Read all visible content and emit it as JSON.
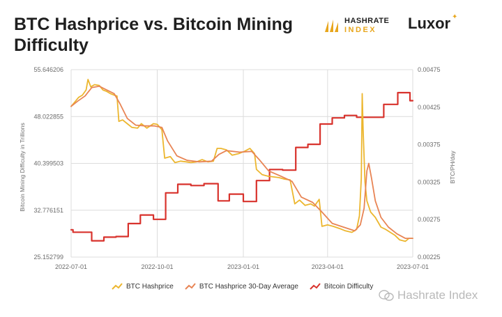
{
  "title": "BTC Hashprice vs. Bitcoin Mining Difficulty",
  "logos": {
    "hashrate_line1": "HASHRATE",
    "hashrate_line2": "INDEX",
    "luxor": "Luxor"
  },
  "watermark": "Hashrate Index",
  "colors": {
    "hashprice": "#ecb62e",
    "hashprice_avg": "#e88454",
    "difficulty": "#d8322c",
    "grid": "#dcdcdc",
    "brand_gold": "#e8a61c"
  },
  "chart_data": {
    "type": "line",
    "title": "BTC Hashprice vs. Bitcoin Mining Difficulty",
    "x_ticks": [
      "2022-07-01",
      "2022-10-01",
      "2023-01-01",
      "2023-04-01",
      "2023-07-01"
    ],
    "x_range": [
      "2022-07-01",
      "2023-07-01"
    ],
    "left_axis": {
      "label": "Bitcoin Mining Difficulty in Trillions",
      "ticks": [
        "55.646206",
        "48.022855",
        "40.399503",
        "32.776151",
        "25.152799"
      ],
      "range": [
        25.152799,
        55.646206
      ]
    },
    "right_axis": {
      "label": "BTC/PH/day",
      "ticks": [
        "0.00475",
        "0.00425",
        "0.00375",
        "0.00325",
        "0.00275",
        "0.00225"
      ],
      "range": [
        0.00225,
        0.00475
      ]
    },
    "grid": true,
    "legend_position": "bottom",
    "series": [
      {
        "name": "BTC Hashprice",
        "axis": "right",
        "color": "#ecb62e",
        "points": [
          [
            "2022-07-01",
            0.00426
          ],
          [
            "2022-07-05",
            0.00432
          ],
          [
            "2022-07-09",
            0.00438
          ],
          [
            "2022-07-13",
            0.00441
          ],
          [
            "2022-07-17",
            0.00448
          ],
          [
            "2022-07-19",
            0.00462
          ],
          [
            "2022-07-22",
            0.00452
          ],
          [
            "2022-07-26",
            0.00455
          ],
          [
            "2022-07-31",
            0.00454
          ],
          [
            "2022-08-04",
            0.00448
          ],
          [
            "2022-08-08",
            0.00446
          ],
          [
            "2022-08-12",
            0.00443
          ],
          [
            "2022-08-16",
            0.00441
          ],
          [
            "2022-08-19",
            0.0044
          ],
          [
            "2022-08-21",
            0.00406
          ],
          [
            "2022-08-25",
            0.00408
          ],
          [
            "2022-08-30",
            0.00403
          ],
          [
            "2022-09-04",
            0.00398
          ],
          [
            "2022-09-10",
            0.00397
          ],
          [
            "2022-09-14",
            0.00403
          ],
          [
            "2022-09-20",
            0.00397
          ],
          [
            "2022-09-27",
            0.00403
          ],
          [
            "2022-10-01",
            0.00402
          ],
          [
            "2022-10-06",
            0.00395
          ],
          [
            "2022-10-09",
            0.00357
          ],
          [
            "2022-10-15",
            0.00359
          ],
          [
            "2022-10-20",
            0.00351
          ],
          [
            "2022-10-26",
            0.00353
          ],
          [
            "2022-11-01",
            0.00352
          ],
          [
            "2022-11-06",
            0.00351
          ],
          [
            "2022-11-12",
            0.00352
          ],
          [
            "2022-11-18",
            0.00355
          ],
          [
            "2022-11-24",
            0.00352
          ],
          [
            "2022-11-30",
            0.00353
          ],
          [
            "2022-12-04",
            0.0037
          ],
          [
            "2022-12-08",
            0.0037
          ],
          [
            "2022-12-14",
            0.00368
          ],
          [
            "2022-12-20",
            0.00361
          ],
          [
            "2022-12-27",
            0.00363
          ],
          [
            "2023-01-02",
            0.00366
          ],
          [
            "2023-01-08",
            0.0037
          ],
          [
            "2023-01-13",
            0.00363
          ],
          [
            "2023-01-15",
            0.00342
          ],
          [
            "2023-01-21",
            0.00335
          ],
          [
            "2023-01-27",
            0.00333
          ],
          [
            "2023-02-02",
            0.00332
          ],
          [
            "2023-02-08",
            0.00331
          ],
          [
            "2023-02-14",
            0.00329
          ],
          [
            "2023-02-20",
            0.00328
          ],
          [
            "2023-02-25",
            0.00296
          ],
          [
            "2023-03-02",
            0.00301
          ],
          [
            "2023-03-08",
            0.00294
          ],
          [
            "2023-03-14",
            0.00296
          ],
          [
            "2023-03-18",
            0.00293
          ],
          [
            "2023-03-23",
            0.00302
          ],
          [
            "2023-03-26",
            0.00266
          ],
          [
            "2023-04-01",
            0.00268
          ],
          [
            "2023-04-07",
            0.00266
          ],
          [
            "2023-04-14",
            0.00263
          ],
          [
            "2023-04-20",
            0.0026
          ],
          [
            "2023-04-27",
            0.00258
          ],
          [
            "2023-05-02",
            0.00262
          ],
          [
            "2023-05-05",
            0.0028
          ],
          [
            "2023-05-07",
            0.0033
          ],
          [
            "2023-05-08",
            0.00443
          ],
          [
            "2023-05-09",
            0.00395
          ],
          [
            "2023-05-11",
            0.00325
          ],
          [
            "2023-05-13",
            0.003
          ],
          [
            "2023-05-17",
            0.00285
          ],
          [
            "2023-05-22",
            0.00278
          ],
          [
            "2023-05-28",
            0.00265
          ],
          [
            "2023-06-02",
            0.00262
          ],
          [
            "2023-06-07",
            0.00258
          ],
          [
            "2023-06-12",
            0.00254
          ],
          [
            "2023-06-17",
            0.00248
          ],
          [
            "2023-06-23",
            0.00246
          ],
          [
            "2023-06-27",
            0.0025
          ],
          [
            "2023-07-01",
            0.0025
          ]
        ]
      },
      {
        "name": "BTC Hashprice 30-Day Average",
        "axis": "right",
        "color": "#e88454",
        "points": [
          [
            "2022-07-01",
            0.00426
          ],
          [
            "2022-07-08",
            0.00433
          ],
          [
            "2022-07-16",
            0.0044
          ],
          [
            "2022-07-23",
            0.00451
          ],
          [
            "2022-07-31",
            0.00453
          ],
          [
            "2022-08-08",
            0.00448
          ],
          [
            "2022-08-16",
            0.00443
          ],
          [
            "2022-08-22",
            0.0043
          ],
          [
            "2022-08-30",
            0.0041
          ],
          [
            "2022-09-08",
            0.00401
          ],
          [
            "2022-09-18",
            0.004
          ],
          [
            "2022-09-28",
            0.004
          ],
          [
            "2022-10-06",
            0.00398
          ],
          [
            "2022-10-12",
            0.0038
          ],
          [
            "2022-10-22",
            0.0036
          ],
          [
            "2022-11-02",
            0.00354
          ],
          [
            "2022-11-15",
            0.00352
          ],
          [
            "2022-11-28",
            0.00353
          ],
          [
            "2022-12-06",
            0.00362
          ],
          [
            "2022-12-14",
            0.00367
          ],
          [
            "2022-12-28",
            0.00365
          ],
          [
            "2023-01-10",
            0.00366
          ],
          [
            "2023-01-18",
            0.00355
          ],
          [
            "2023-01-28",
            0.0034
          ],
          [
            "2023-02-10",
            0.00333
          ],
          [
            "2023-02-22",
            0.00326
          ],
          [
            "2023-03-04",
            0.00305
          ],
          [
            "2023-03-16",
            0.00298
          ],
          [
            "2023-03-26",
            0.00285
          ],
          [
            "2023-04-06",
            0.0027
          ],
          [
            "2023-04-18",
            0.00265
          ],
          [
            "2023-04-30",
            0.0026
          ],
          [
            "2023-05-06",
            0.00268
          ],
          [
            "2023-05-10",
            0.0029
          ],
          [
            "2023-05-13",
            0.0034
          ],
          [
            "2023-05-15",
            0.0035
          ],
          [
            "2023-05-18",
            0.0033
          ],
          [
            "2023-05-22",
            0.003
          ],
          [
            "2023-05-28",
            0.00278
          ],
          [
            "2023-06-05",
            0.00265
          ],
          [
            "2023-06-14",
            0.00256
          ],
          [
            "2023-06-23",
            0.0025
          ],
          [
            "2023-07-01",
            0.0025
          ]
        ]
      },
      {
        "name": "Bitcoin Difficulty",
        "axis": "left",
        "color": "#d8322c",
        "points": [
          [
            "2022-07-01",
            29.6
          ],
          [
            "2022-07-03",
            29.2
          ],
          [
            "2022-07-23",
            27.8
          ],
          [
            "2022-08-05",
            28.4
          ],
          [
            "2022-08-18",
            28.5
          ],
          [
            "2022-08-31",
            30.6
          ],
          [
            "2022-09-13",
            32.0
          ],
          [
            "2022-09-27",
            31.3
          ],
          [
            "2022-10-10",
            35.6
          ],
          [
            "2022-10-23",
            37.0
          ],
          [
            "2022-11-06",
            36.8
          ],
          [
            "2022-11-20",
            37.1
          ],
          [
            "2022-12-05",
            34.3
          ],
          [
            "2022-12-17",
            35.4
          ],
          [
            "2023-01-01",
            34.2
          ],
          [
            "2023-01-15",
            37.6
          ],
          [
            "2023-01-29",
            39.4
          ],
          [
            "2023-02-12",
            39.3
          ],
          [
            "2023-02-26",
            43.0
          ],
          [
            "2023-03-11",
            43.5
          ],
          [
            "2023-03-24",
            46.8
          ],
          [
            "2023-04-06",
            47.8
          ],
          [
            "2023-04-19",
            48.2
          ],
          [
            "2023-05-02",
            47.9
          ],
          [
            "2023-05-18",
            47.9
          ],
          [
            "2023-05-31",
            50.0
          ],
          [
            "2023-06-15",
            51.9
          ],
          [
            "2023-06-28",
            50.6
          ],
          [
            "2023-07-01",
            50.6
          ]
        ]
      }
    ]
  }
}
